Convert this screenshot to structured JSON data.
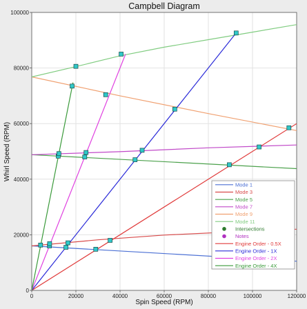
{
  "chart_data": {
    "type": "line",
    "title": "Campbell Diagram",
    "xlabel": "Spin Speed (RPM)",
    "ylabel": "Whirl Speed (RPM)",
    "xlim": [
      0,
      120000
    ],
    "ylim": [
      0,
      100000
    ],
    "xticks": [
      "0",
      "20000",
      "40000",
      "60000",
      "80000",
      "100000",
      "120000"
    ],
    "yticks": [
      "0",
      "20000",
      "40000",
      "60000",
      "80000",
      "100000"
    ],
    "xtick_values": [
      0,
      20000,
      40000,
      60000,
      80000,
      100000,
      120000
    ],
    "ytick_values": [
      0,
      20000,
      40000,
      60000,
      80000,
      100000
    ],
    "grid": true,
    "legend_position": "lower-right",
    "series": [
      {
        "name": "Mode 1",
        "color": "#4a6fd4",
        "kind": "mode",
        "x": [
          0,
          120000
        ],
        "y": [
          16000,
          10500
        ]
      },
      {
        "name": "Mode 3",
        "color": "#d84a4a",
        "kind": "mode",
        "x": [
          0,
          30000,
          60000,
          90000,
          120000
        ],
        "y": [
          16000,
          18200,
          19900,
          21000,
          22000
        ]
      },
      {
        "name": "Mode 5",
        "color": "#4aa04a",
        "kind": "mode",
        "x": [
          0,
          120000
        ],
        "y": [
          48800,
          43800
        ]
      },
      {
        "name": "Mode 7",
        "color": "#c048c8",
        "kind": "mode",
        "x": [
          0,
          40000,
          80000,
          120000
        ],
        "y": [
          48800,
          49900,
          51300,
          52300
        ]
      },
      {
        "name": "Mode 9",
        "color": "#f0a070",
        "kind": "mode",
        "x": [
          0,
          40000,
          80000,
          120000
        ],
        "y": [
          76800,
          70000,
          63600,
          57500
        ]
      },
      {
        "name": "Mode 11",
        "color": "#80cc80",
        "kind": "mode",
        "x": [
          0,
          20000,
          40000,
          60000,
          80000,
          100000,
          120000
        ],
        "y": [
          76800,
          80500,
          84400,
          87500,
          90200,
          92900,
          95600
        ]
      },
      {
        "name": "Intersections",
        "color": "#2d7a2d",
        "kind": "marker-legend"
      },
      {
        "name": "Notes",
        "color": "#b030c0",
        "kind": "marker-legend"
      },
      {
        "name": "Engine Order - 0.5X",
        "color": "#e03a3a",
        "kind": "order",
        "x": [
          0,
          120000
        ],
        "y": [
          0,
          60000
        ]
      },
      {
        "name": "Engine Order - 1X",
        "color": "#2a2ad8",
        "kind": "order",
        "x": [
          0,
          92600
        ],
        "y": [
          0,
          92600
        ]
      },
      {
        "name": "Engine Order - 2X",
        "color": "#e040e0",
        "kind": "order",
        "x": [
          0,
          42500
        ],
        "y": [
          0,
          85000
        ]
      },
      {
        "name": "Engine Order - 4X",
        "color": "#3a9a3a",
        "kind": "order",
        "x": [
          0,
          18700
        ],
        "y": [
          0,
          74800
        ]
      }
    ],
    "intersections": [
      {
        "x": 4000,
        "y": 16300
      },
      {
        "x": 8000,
        "y": 16000
      },
      {
        "x": 8100,
        "y": 16800
      },
      {
        "x": 15500,
        "y": 15500
      },
      {
        "x": 16400,
        "y": 17100
      },
      {
        "x": 29000,
        "y": 14800
      },
      {
        "x": 35500,
        "y": 18000
      },
      {
        "x": 12000,
        "y": 48300
      },
      {
        "x": 12300,
        "y": 49200
      },
      {
        "x": 24000,
        "y": 48000
      },
      {
        "x": 24600,
        "y": 49600
      },
      {
        "x": 46800,
        "y": 47000
      },
      {
        "x": 50000,
        "y": 50400
      },
      {
        "x": 89500,
        "y": 45200
      },
      {
        "x": 103000,
        "y": 51600
      },
      {
        "x": 18300,
        "y": 73500
      },
      {
        "x": 20000,
        "y": 80600
      },
      {
        "x": 33500,
        "y": 70400
      },
      {
        "x": 40500,
        "y": 85000
      },
      {
        "x": 64800,
        "y": 65200
      },
      {
        "x": 92600,
        "y": 92600
      },
      {
        "x": 116500,
        "y": 58500
      }
    ],
    "marker_color": "#30c8c8"
  }
}
